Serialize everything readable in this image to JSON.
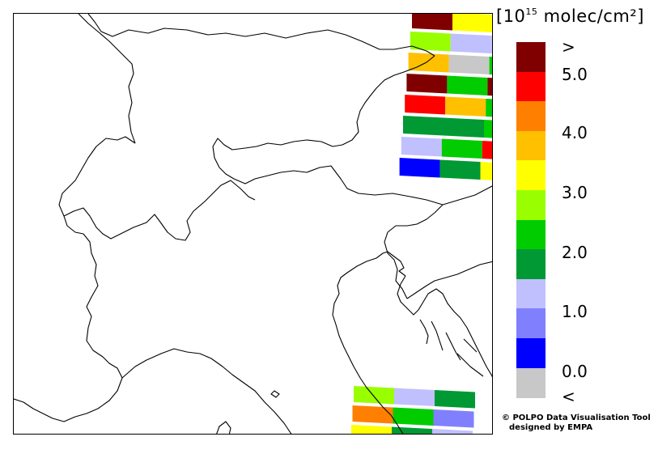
{
  "unit": {
    "prefix": "[10",
    "exponent": "15",
    "suffix": " molec/cm²]"
  },
  "colorbar": {
    "colors": [
      "#800000",
      "#ff0000",
      "#ff8000",
      "#ffc000",
      "#ffff00",
      "#99ff00",
      "#00cc00",
      "#009933",
      "#c0c0ff",
      "#8080ff",
      "#0000ff",
      "#c8c8c8"
    ],
    "labels": [
      ">",
      "5.0",
      "4.0",
      "3.0",
      "2.0",
      "1.0",
      "0.0",
      "<"
    ]
  },
  "credit": {
    "line1": "© POLPO Data Visualisation Tool",
    "line2": "designed by EMPA"
  },
  "swaths": {
    "top_right": [
      [
        "#800000",
        "#ffff00",
        "#800000"
      ],
      [
        "#99ff00",
        "#c0c0ff",
        "#c0c0ff"
      ],
      [
        "#ffc000",
        "#c8c8c8",
        "#00cc00"
      ],
      [
        "#800000",
        "#00cc00",
        "#800000"
      ],
      [
        "#ff0000",
        "#ffc000",
        "#00cc00"
      ],
      [
        "#009933",
        "#009933",
        "#00cc00"
      ],
      [
        "#c0c0ff",
        "#00cc00",
        "#ff0000"
      ],
      [
        "#0000ff",
        "#009933",
        "#ffff00"
      ]
    ],
    "bottom_right": [
      [
        "#99ff00",
        "#c0c0ff",
        "#009933"
      ],
      [
        "#ff8000",
        "#00cc00",
        "#8080ff"
      ],
      [
        "#ffff00",
        "#009933",
        "#c0c0ff"
      ]
    ]
  }
}
